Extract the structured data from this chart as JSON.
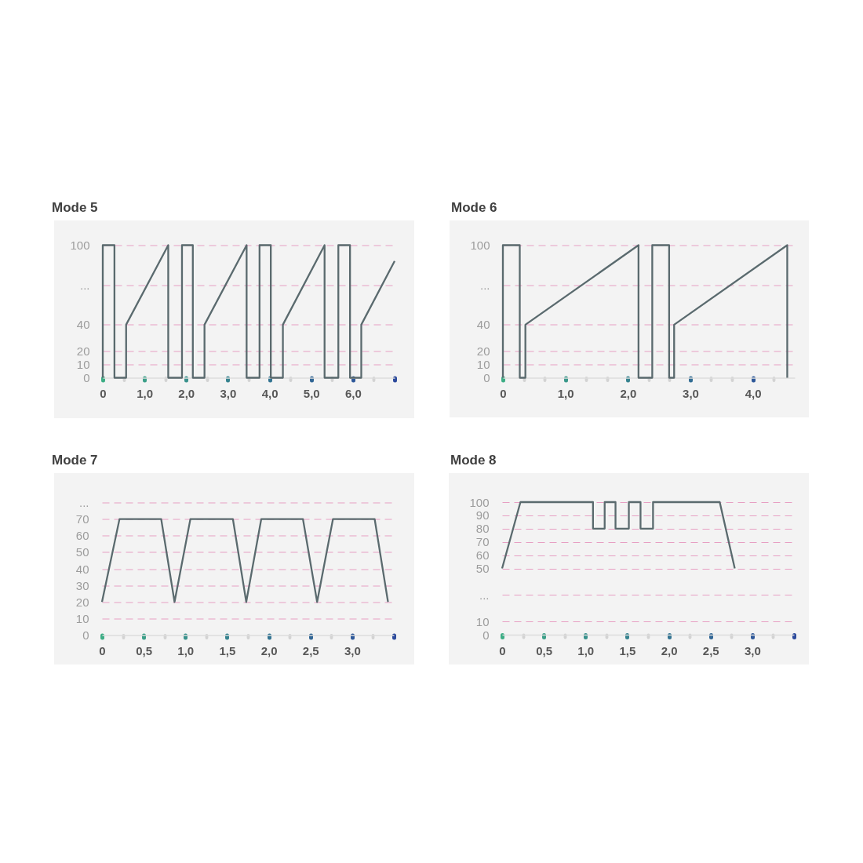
{
  "chart_data": [
    {
      "type": "line",
      "title": "Mode 5",
      "x": [
        0,
        0,
        0.28,
        0.28,
        0.56,
        0.56,
        1.57,
        1.57,
        1.9,
        1.9,
        2.16,
        2.16,
        2.44,
        2.44,
        3.45,
        3.45,
        3.76,
        3.76,
        4.03,
        4.03,
        4.32,
        4.32,
        5.32,
        5.32,
        5.65,
        5.65,
        5.93,
        5.93,
        6.2,
        6.2,
        7
      ],
      "series": [
        {
          "color": "#5a6a6e",
          "values": [
            0,
            100,
            100,
            0,
            0,
            40,
            100,
            0,
            0,
            100,
            100,
            0,
            0,
            40,
            100,
            0,
            0,
            100,
            100,
            0,
            0,
            40,
            100,
            0,
            0,
            100,
            100,
            0,
            0,
            40,
            88
          ]
        }
      ],
      "xlim": [
        0,
        7
      ],
      "xticks": [
        {
          "value": 0,
          "label": "0"
        },
        {
          "value": 0.5,
          "label": null
        },
        {
          "value": 1,
          "label": "1,0"
        },
        {
          "value": 1.5,
          "label": null
        },
        {
          "value": 2,
          "label": "2,0"
        },
        {
          "value": 2.5,
          "label": null
        },
        {
          "value": 3,
          "label": "3,0"
        },
        {
          "value": 3.5,
          "label": null
        },
        {
          "value": 4,
          "label": "4,0"
        },
        {
          "value": 4.5,
          "label": null
        },
        {
          "value": 5,
          "label": "5,0"
        },
        {
          "value": 5.5,
          "label": null
        },
        {
          "value": 6,
          "label": "6,0"
        },
        {
          "value": 6.5,
          "label": null
        },
        {
          "value": 7,
          "label": null
        }
      ],
      "ylim": [
        0,
        100
      ],
      "yticks": [
        0,
        10,
        20,
        40,
        {
          "value": 70,
          "label": "..."
        },
        100
      ],
      "grid": "y"
    },
    {
      "type": "line",
      "title": "Mode 6",
      "x": [
        0,
        0,
        0.27,
        0.27,
        0.36,
        0.36,
        2.17,
        2.17,
        2.39,
        2.39,
        2.66,
        2.66,
        2.74,
        2.74,
        4.55,
        4.55
      ],
      "series": [
        {
          "color": "#5a6a6e",
          "values": [
            0,
            100,
            100,
            0,
            0,
            40,
            100,
            0,
            0,
            100,
            100,
            0,
            0,
            40,
            100,
            0
          ]
        }
      ],
      "xlim": [
        0,
        4.67
      ],
      "xticks": [
        {
          "value": 0,
          "label": "0"
        },
        {
          "value": 0.333,
          "label": null
        },
        {
          "value": 0.667,
          "label": null
        },
        {
          "value": 1,
          "label": "1,0"
        },
        {
          "value": 1.333,
          "label": null
        },
        {
          "value": 1.667,
          "label": null
        },
        {
          "value": 2,
          "label": "2,0"
        },
        {
          "value": 2.333,
          "label": null
        },
        {
          "value": 2.667,
          "label": null
        },
        {
          "value": 3,
          "label": "3,0"
        },
        {
          "value": 3.333,
          "label": null
        },
        {
          "value": 3.667,
          "label": null
        },
        {
          "value": 4,
          "label": "4,0"
        },
        {
          "value": 4.333,
          "label": null
        }
      ],
      "ylim": [
        0,
        100
      ],
      "yticks": [
        0,
        10,
        20,
        40,
        {
          "value": 70,
          "label": "..."
        },
        100
      ],
      "grid": "y"
    },
    {
      "type": "line",
      "title": "Mode 7",
      "x": [
        0,
        0.21,
        0.71,
        0.87,
        1.06,
        1.57,
        1.73,
        1.91,
        2.41,
        2.58,
        2.77,
        3.27,
        3.43
      ],
      "series": [
        {
          "color": "#5a6a6e",
          "values": [
            20,
            70,
            70,
            20,
            70,
            70,
            20,
            70,
            70,
            20,
            70,
            70,
            20
          ]
        }
      ],
      "xlim": [
        0,
        3.5
      ],
      "xticks": [
        {
          "value": 0,
          "label": "0"
        },
        {
          "value": 0.25,
          "label": null
        },
        {
          "value": 0.5,
          "label": "0,5"
        },
        {
          "value": 0.75,
          "label": null
        },
        {
          "value": 1,
          "label": "1,0"
        },
        {
          "value": 1.25,
          "label": null
        },
        {
          "value": 1.5,
          "label": "1,5"
        },
        {
          "value": 1.75,
          "label": null
        },
        {
          "value": 2,
          "label": "2,0"
        },
        {
          "value": 2.25,
          "label": null
        },
        {
          "value": 2.5,
          "label": "2,5"
        },
        {
          "value": 2.75,
          "label": null
        },
        {
          "value": 3,
          "label": "3,0"
        },
        {
          "value": 3.25,
          "label": null
        },
        {
          "value": 3.5,
          "label": null
        }
      ],
      "ylim": [
        0,
        80
      ],
      "yticks": [
        0,
        10,
        20,
        30,
        40,
        50,
        60,
        70,
        {
          "value": 80,
          "label": "..."
        }
      ],
      "grid": "y"
    },
    {
      "type": "line",
      "title": "Mode 8",
      "x": [
        0,
        0.22,
        1.09,
        1.09,
        1.23,
        1.23,
        1.36,
        1.36,
        1.52,
        1.52,
        1.66,
        1.66,
        1.81,
        1.81,
        2.61,
        2.79
      ],
      "series": [
        {
          "color": "#5a6a6e",
          "values": [
            50,
            100,
            100,
            80,
            80,
            100,
            100,
            80,
            80,
            100,
            100,
            80,
            80,
            100,
            100,
            50
          ]
        }
      ],
      "xlim": [
        0,
        3.5
      ],
      "xticks": [
        {
          "value": 0,
          "label": "0"
        },
        {
          "value": 0.25,
          "label": null
        },
        {
          "value": 0.5,
          "label": "0,5"
        },
        {
          "value": 0.75,
          "label": null
        },
        {
          "value": 1,
          "label": "1,0"
        },
        {
          "value": 1.25,
          "label": null
        },
        {
          "value": 1.5,
          "label": "1,5"
        },
        {
          "value": 1.75,
          "label": null
        },
        {
          "value": 2,
          "label": "2,0"
        },
        {
          "value": 2.25,
          "label": null
        },
        {
          "value": 2.5,
          "label": "2,5"
        },
        {
          "value": 2.75,
          "label": null
        },
        {
          "value": 3,
          "label": "3,0"
        },
        {
          "value": 3.25,
          "label": null
        },
        {
          "value": 3.5,
          "label": null
        }
      ],
      "ylim": [
        0,
        100
      ],
      "yticks": [
        0,
        10,
        {
          "value": 30,
          "label": "..."
        },
        50,
        60,
        70,
        80,
        90,
        100
      ],
      "grid": "y"
    }
  ]
}
